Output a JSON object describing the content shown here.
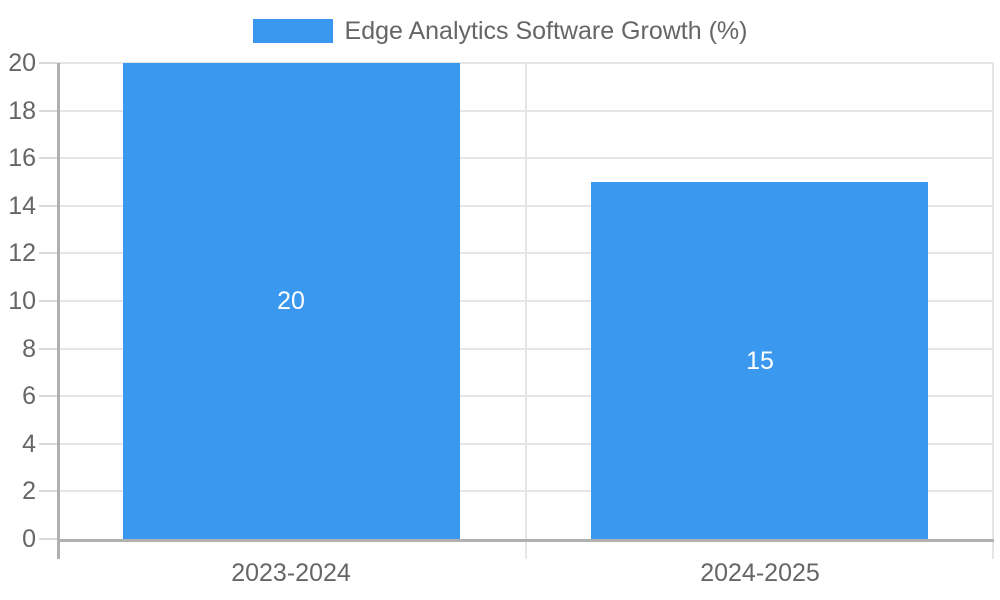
{
  "chart_data": {
    "type": "bar",
    "title": "",
    "series_label": "Edge Analytics Software Growth (%)",
    "categories": [
      "2023-2024",
      "2024-2025"
    ],
    "values": [
      20,
      15
    ],
    "value_labels": [
      "20",
      "15"
    ],
    "xlabel": "",
    "ylabel": "",
    "ylim": [
      0,
      20
    ],
    "ytick_step": 2,
    "ytick_labels": [
      "0",
      "2",
      "4",
      "6",
      "8",
      "10",
      "12",
      "14",
      "16",
      "18",
      "20"
    ],
    "grid": true,
    "legend_position": "top",
    "show_value_labels": true,
    "colors": {
      "bar": "#3A99EE",
      "grid": "#e6e6e6",
      "tick": "#d9d9d9",
      "axis": "#b0b0b0",
      "text": "#666666",
      "value_label": "#ffffff",
      "background": "#ffffff"
    }
  }
}
